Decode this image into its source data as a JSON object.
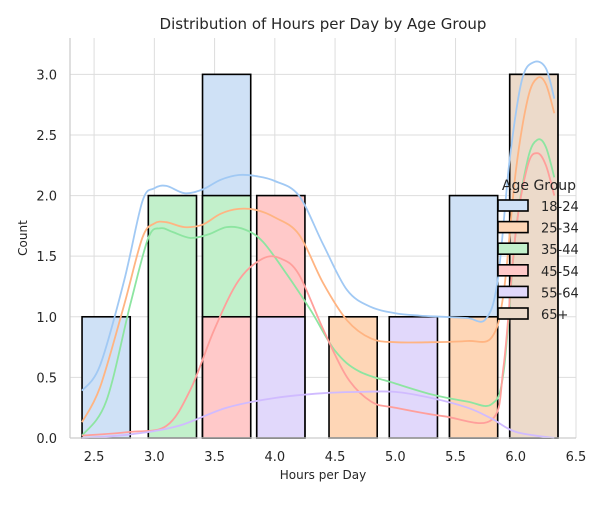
{
  "chart_data": {
    "type": "bar",
    "title": "Distribution of Hours per Day by Age Group",
    "xlabel": "Hours per Day",
    "ylabel": "Count",
    "xlim": [
      2.3,
      6.5
    ],
    "ylim": [
      0,
      3.3
    ],
    "xticks": [
      2.5,
      3.0,
      3.5,
      4.0,
      4.5,
      5.0,
      5.5,
      6.0,
      6.5
    ],
    "xtick_labels": [
      "2.5",
      "3.0",
      "3.5",
      "4.0",
      "4.5",
      "5.0",
      "5.5",
      "6.0",
      "6.5"
    ],
    "yticks": [
      0,
      0.5,
      1.0,
      1.5,
      2.0,
      2.5,
      3.0
    ],
    "ytick_labels": [
      "0.0",
      "0.5",
      "1.0",
      "1.5",
      "2.0",
      "2.5",
      "3.0"
    ],
    "grid": true,
    "legend": {
      "title": "Age Group",
      "placement": "right"
    },
    "bin_width": 0.4,
    "series": [
      {
        "name": "18-24",
        "color": "#cfe1f6",
        "bars": [
          [
            2.4,
            1
          ],
          [
            3.4,
            3
          ],
          [
            5.45,
            2
          ]
        ],
        "kde_color": "#a1c9f4",
        "kde": [
          [
            2.4,
            0.39
          ],
          [
            2.55,
            0.6
          ],
          [
            2.75,
            1.3
          ],
          [
            2.9,
            1.95
          ],
          [
            3.0,
            2.06
          ],
          [
            3.1,
            2.08
          ],
          [
            3.25,
            2.02
          ],
          [
            3.4,
            2.05
          ],
          [
            3.55,
            2.13
          ],
          [
            3.7,
            2.17
          ],
          [
            3.85,
            2.16
          ],
          [
            4.0,
            2.12
          ],
          [
            4.2,
            2.0
          ],
          [
            4.4,
            1.6
          ],
          [
            4.6,
            1.22
          ],
          [
            4.8,
            1.08
          ],
          [
            5.0,
            1.03
          ],
          [
            5.2,
            1.01
          ],
          [
            5.4,
            1.0
          ],
          [
            5.6,
            0.99
          ],
          [
            5.75,
            0.98
          ],
          [
            5.85,
            1.3
          ],
          [
            5.95,
            2.3
          ],
          [
            6.05,
            2.95
          ],
          [
            6.15,
            3.1
          ],
          [
            6.25,
            3.05
          ],
          [
            6.32,
            2.8
          ]
        ]
      },
      {
        "name": "25-34",
        "color": "#fed6b6",
        "bars": [
          [
            4.45,
            1
          ],
          [
            5.45,
            1
          ],
          [
            5.95,
            3
          ]
        ],
        "kde_color": "#ffb482",
        "kde": [
          [
            2.4,
            0.13
          ],
          [
            2.55,
            0.42
          ],
          [
            2.75,
            1.1
          ],
          [
            2.9,
            1.65
          ],
          [
            3.0,
            1.77
          ],
          [
            3.1,
            1.78
          ],
          [
            3.25,
            1.74
          ],
          [
            3.4,
            1.76
          ],
          [
            3.55,
            1.85
          ],
          [
            3.7,
            1.89
          ],
          [
            3.85,
            1.88
          ],
          [
            4.0,
            1.82
          ],
          [
            4.2,
            1.68
          ],
          [
            4.4,
            1.28
          ],
          [
            4.6,
            0.97
          ],
          [
            4.8,
            0.82
          ],
          [
            5.0,
            0.79
          ],
          [
            5.3,
            0.79
          ],
          [
            5.6,
            0.8
          ],
          [
            5.8,
            0.83
          ],
          [
            5.9,
            1.2
          ],
          [
            6.0,
            2.2
          ],
          [
            6.1,
            2.8
          ],
          [
            6.18,
            2.97
          ],
          [
            6.25,
            2.92
          ],
          [
            6.32,
            2.68
          ]
        ]
      },
      {
        "name": "35-44",
        "color": "#c2f0cb",
        "bars": [
          [
            2.95,
            2
          ],
          [
            3.4,
            2
          ]
        ],
        "kde_color": "#8de5a1",
        "kde": [
          [
            2.4,
            0.02
          ],
          [
            2.6,
            0.3
          ],
          [
            2.8,
            1.1
          ],
          [
            2.95,
            1.65
          ],
          [
            3.05,
            1.73
          ],
          [
            3.15,
            1.7
          ],
          [
            3.3,
            1.65
          ],
          [
            3.45,
            1.68
          ],
          [
            3.6,
            1.74
          ],
          [
            3.75,
            1.72
          ],
          [
            3.9,
            1.62
          ],
          [
            4.1,
            1.35
          ],
          [
            4.3,
            1.05
          ],
          [
            4.5,
            0.72
          ],
          [
            4.7,
            0.55
          ],
          [
            5.0,
            0.45
          ],
          [
            5.3,
            0.36
          ],
          [
            5.6,
            0.3
          ],
          [
            5.8,
            0.28
          ],
          [
            5.9,
            0.55
          ],
          [
            6.0,
            1.7
          ],
          [
            6.1,
            2.3
          ],
          [
            6.18,
            2.46
          ],
          [
            6.25,
            2.4
          ],
          [
            6.32,
            2.15
          ]
        ]
      },
      {
        "name": "45-54",
        "color": "#ffc9c9",
        "bars": [
          [
            3.4,
            1
          ],
          [
            3.85,
            2
          ]
        ],
        "kde_color": "#ff9f9b",
        "kde": [
          [
            2.4,
            0.02
          ],
          [
            2.8,
            0.05
          ],
          [
            3.1,
            0.1
          ],
          [
            3.3,
            0.4
          ],
          [
            3.5,
            0.9
          ],
          [
            3.7,
            1.3
          ],
          [
            3.9,
            1.48
          ],
          [
            4.05,
            1.48
          ],
          [
            4.2,
            1.35
          ],
          [
            4.4,
            0.9
          ],
          [
            4.6,
            0.5
          ],
          [
            4.8,
            0.3
          ],
          [
            5.0,
            0.25
          ],
          [
            5.4,
            0.18
          ],
          [
            5.8,
            0.15
          ],
          [
            5.9,
            0.6
          ],
          [
            6.0,
            1.7
          ],
          [
            6.1,
            2.25
          ],
          [
            6.18,
            2.35
          ],
          [
            6.25,
            2.25
          ],
          [
            6.32,
            2.0
          ]
        ]
      },
      {
        "name": "55-64",
        "color": "#e1d8fb",
        "bars": [
          [
            3.85,
            1
          ],
          [
            4.95,
            1
          ]
        ],
        "kde_color": "#d0bbff",
        "kde": [
          [
            2.4,
            0.0
          ],
          [
            2.8,
            0.03
          ],
          [
            3.2,
            0.1
          ],
          [
            3.6,
            0.25
          ],
          [
            4.0,
            0.33
          ],
          [
            4.4,
            0.37
          ],
          [
            4.7,
            0.38
          ],
          [
            5.0,
            0.38
          ],
          [
            5.3,
            0.33
          ],
          [
            5.6,
            0.25
          ],
          [
            5.8,
            0.16
          ],
          [
            6.0,
            0.05
          ],
          [
            6.32,
            0.0
          ]
        ]
      },
      {
        "name": "65+",
        "color": "#ecdaca",
        "bars": [
          [
            5.95,
            3
          ]
        ],
        "kde_color": "#debb9b",
        "kde": []
      }
    ]
  }
}
